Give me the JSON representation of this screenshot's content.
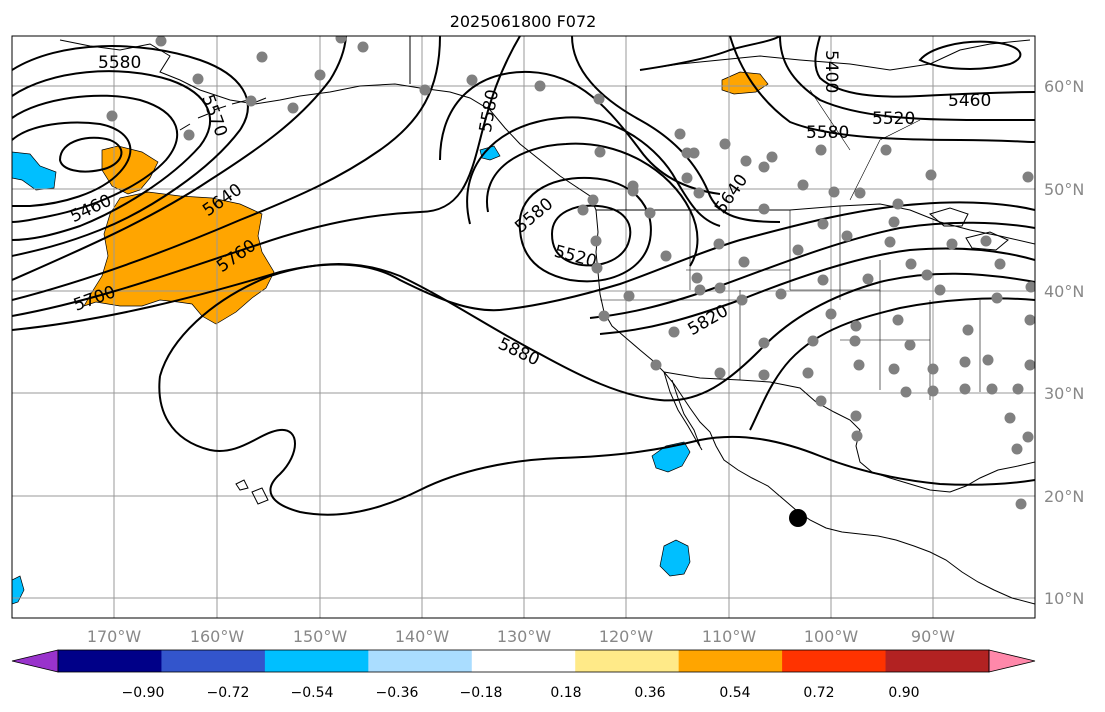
{
  "title": "2025061800 F072",
  "map": {
    "lon_labels": [
      "170°W",
      "160°W",
      "150°W",
      "140°W",
      "130°W",
      "120°W",
      "110°W",
      "100°W",
      "90°W"
    ],
    "lat_labels": [
      "60°N",
      "50°N",
      "40°N",
      "30°N",
      "20°N",
      "10°N"
    ],
    "contour_labels": [
      "5580",
      "5570",
      "5460",
      "5640",
      "5760",
      "5700",
      "5580",
      "5580",
      "5520",
      "5640",
      "5820",
      "5880",
      "5400",
      "5460",
      "5520",
      "5580"
    ],
    "colors": {
      "contour": "#000000",
      "land": "#000000",
      "gridline": "#999999",
      "station": "#808080",
      "marker": "#000000"
    }
  },
  "colorbar": {
    "ticks": [
      "−0.90",
      "−0.72",
      "−0.54",
      "−0.36",
      "−0.18",
      "0.18",
      "0.36",
      "0.54",
      "0.72",
      "0.90"
    ],
    "colors": [
      "#9933cc",
      "#000088",
      "#3355cc",
      "#00bfff",
      "#aaddff",
      "#ffffff",
      "#ffea88",
      "#ffa500",
      "#ff3300",
      "#b22222",
      "#ff88aa"
    ]
  }
}
